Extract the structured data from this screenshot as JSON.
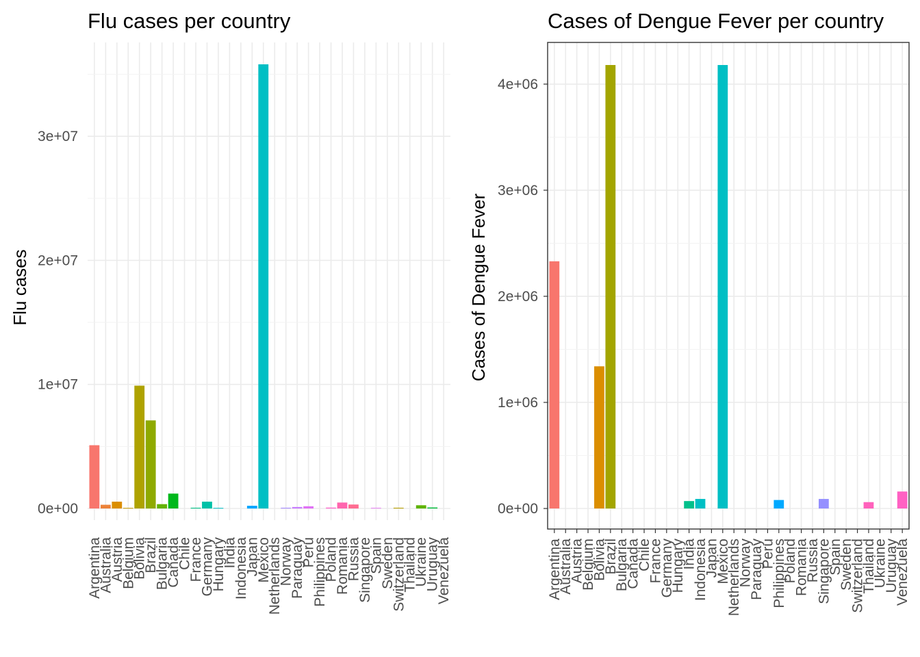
{
  "chart_data": [
    {
      "type": "bar",
      "title": "Flu cases per country",
      "xlabel": "",
      "ylabel": "Flu cases",
      "ylim": [
        0,
        36000000
      ],
      "yticks": [
        0,
        10000000,
        20000000,
        30000000
      ],
      "ytick_labels": [
        "0e+00",
        "1e+07",
        "2e+07",
        "3e+07"
      ],
      "grid": true,
      "panel_border": false,
      "legend": "none",
      "categories": [
        "Argentina",
        "Australia",
        "Austria",
        "Belgium",
        "Bolivia",
        "Brazil",
        "Bulgaria",
        "Canada",
        "Chile",
        "France",
        "Germany",
        "Hungary",
        "India",
        "Indonesia",
        "Japan",
        "Mexico",
        "Netherlands",
        "Norway",
        "Paraguay",
        "Peru",
        "Philippines",
        "Poland",
        "Romania",
        "Russia",
        "Singapore",
        "Spain",
        "Sweden",
        "Switzerland",
        "Thailand",
        "Ukraine",
        "Uruguay",
        "Venezuela"
      ],
      "values": [
        5100000,
        300000,
        550000,
        50000,
        9900000,
        7100000,
        350000,
        1200000,
        0,
        60000,
        550000,
        50000,
        0,
        0,
        220000,
        35800000,
        0,
        60000,
        120000,
        180000,
        0,
        70000,
        480000,
        320000,
        0,
        60000,
        0,
        60000,
        0,
        260000,
        80000,
        0
      ],
      "colors": [
        "#F8766D",
        "#EC8239",
        "#DB8E00",
        "#C79800",
        "#AEA200",
        "#8FAA00",
        "#64B200",
        "#00B81B",
        "#00BD5C",
        "#00C085",
        "#00C1A7",
        "#00BFC4",
        "#00BADE",
        "#00B2F3",
        "#00A6FF",
        "#00BFC4",
        "#7C96FF",
        "#A58AFF",
        "#C77CFF",
        "#E071F5",
        "#F067E9",
        "#FF61C9",
        "#FF65AE",
        "#FF6C91",
        "#F8766D",
        "#E78AF3",
        "#D39200",
        "#B79F00",
        "#93AA00",
        "#5EB300",
        "#00BA38",
        "#00BF74"
      ]
    },
    {
      "type": "bar",
      "title": "Cases of Dengue Fever per country",
      "xlabel": "",
      "ylabel": "Cases of Dengue Fever",
      "ylim": [
        0,
        4200000
      ],
      "yticks": [
        0,
        1000000,
        2000000,
        3000000,
        4000000
      ],
      "ytick_labels": [
        "0e+00",
        "1e+06",
        "2e+06",
        "3e+06",
        "4e+06"
      ],
      "grid": true,
      "panel_border": true,
      "legend": "none",
      "categories": [
        "Argentina",
        "Australia",
        "Austria",
        "Belgium",
        "Bolivia",
        "Brazil",
        "Bulgaria",
        "Canada",
        "Chile",
        "France",
        "Germany",
        "Hungary",
        "India",
        "Indonesia",
        "Japan",
        "Mexico",
        "Netherlands",
        "Norway",
        "Paraguay",
        "Peru",
        "Philippines",
        "Poland",
        "Romania",
        "Russia",
        "Singapore",
        "Spain",
        "Sweden",
        "Switzerland",
        "Thailand",
        "Ukraine",
        "Uruguay",
        "Venezuela"
      ],
      "values": [
        2330000,
        0,
        0,
        0,
        1340000,
        4180000,
        0,
        0,
        0,
        0,
        0,
        0,
        70000,
        90000,
        0,
        4180000,
        0,
        0,
        0,
        0,
        80000,
        0,
        0,
        0,
        90000,
        0,
        0,
        0,
        60000,
        0,
        0,
        160000
      ],
      "colors": [
        "#F8766D",
        "#EC8239",
        "#DB8E00",
        "#C79800",
        "#DB8E00",
        "#A3A500",
        "#64B200",
        "#00B81B",
        "#00BD5C",
        "#00C085",
        "#00C1A7",
        "#00BA38",
        "#00C08B",
        "#00BFC4",
        "#00B4F0",
        "#00BFC4",
        "#7C96FF",
        "#A58AFF",
        "#C77CFF",
        "#E071F5",
        "#00A9FF",
        "#FF61C9",
        "#FF65AE",
        "#FF6C91",
        "#9590FF",
        "#E78AF3",
        "#D39200",
        "#B79F00",
        "#FF62BC",
        "#5EB300",
        "#00BA38",
        "#FF61C3"
      ]
    }
  ]
}
